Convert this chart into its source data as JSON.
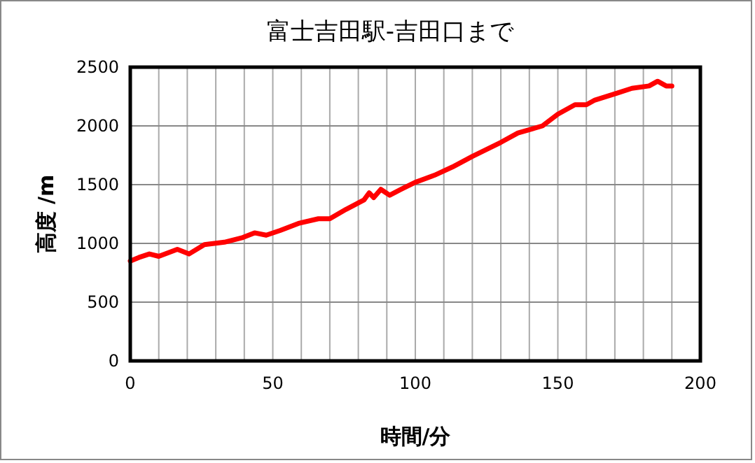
{
  "chart_data": {
    "type": "line",
    "title": "富士吉田駅-吉田口まで",
    "xlabel": "時間/分",
    "ylabel": "高度 /m",
    "xlim": [
      0,
      200
    ],
    "xticks": [
      0,
      {
        "value": 10,
        "label": null
      },
      {
        "value": 20,
        "label": null
      },
      {
        "value": 30,
        "label": null
      },
      {
        "value": 40,
        "label": null
      },
      50,
      {
        "value": 60,
        "label": null
      },
      {
        "value": 70,
        "label": null
      },
      {
        "value": 80,
        "label": null
      },
      {
        "value": 90,
        "label": null
      },
      100,
      {
        "value": 110,
        "label": null
      },
      {
        "value": 120,
        "label": null
      },
      {
        "value": 130,
        "label": null
      },
      {
        "value": 140,
        "label": null
      },
      150,
      {
        "value": 160,
        "label": null
      },
      {
        "value": 170,
        "label": null
      },
      {
        "value": 180,
        "label": null
      },
      {
        "value": 190,
        "label": null
      },
      200
    ],
    "ylim": [
      0,
      2500
    ],
    "yticks": [
      0,
      500,
      1000,
      1500,
      2000,
      2500
    ],
    "grid": true,
    "marker": "none",
    "line_style": "solid",
    "series": [
      {
        "color": "#ff0000",
        "x": [
          0,
          3,
          6.7,
          10,
          16.5,
          20.6,
          26,
          33,
          39.5,
          43.6,
          47.7,
          52.6,
          59,
          66,
          70,
          75.7,
          82,
          83.8,
          85.4,
          87.9,
          91,
          95,
          100,
          106.7,
          113,
          120,
          130,
          136,
          144.6,
          150,
          156,
          160,
          163,
          171,
          176,
          182,
          185,
          188,
          190
        ],
        "values": [
          850,
          880,
          910,
          890,
          950,
          910,
          990,
          1010,
          1050,
          1090,
          1070,
          1110,
          1170,
          1210,
          1210,
          1290,
          1370,
          1430,
          1390,
          1460,
          1410,
          1460,
          1520,
          1580,
          1650,
          1740,
          1860,
          1940,
          2000,
          2100,
          2180,
          2180,
          2220,
          2280,
          2320,
          2340,
          2380,
          2340,
          2340
        ]
      }
    ]
  }
}
